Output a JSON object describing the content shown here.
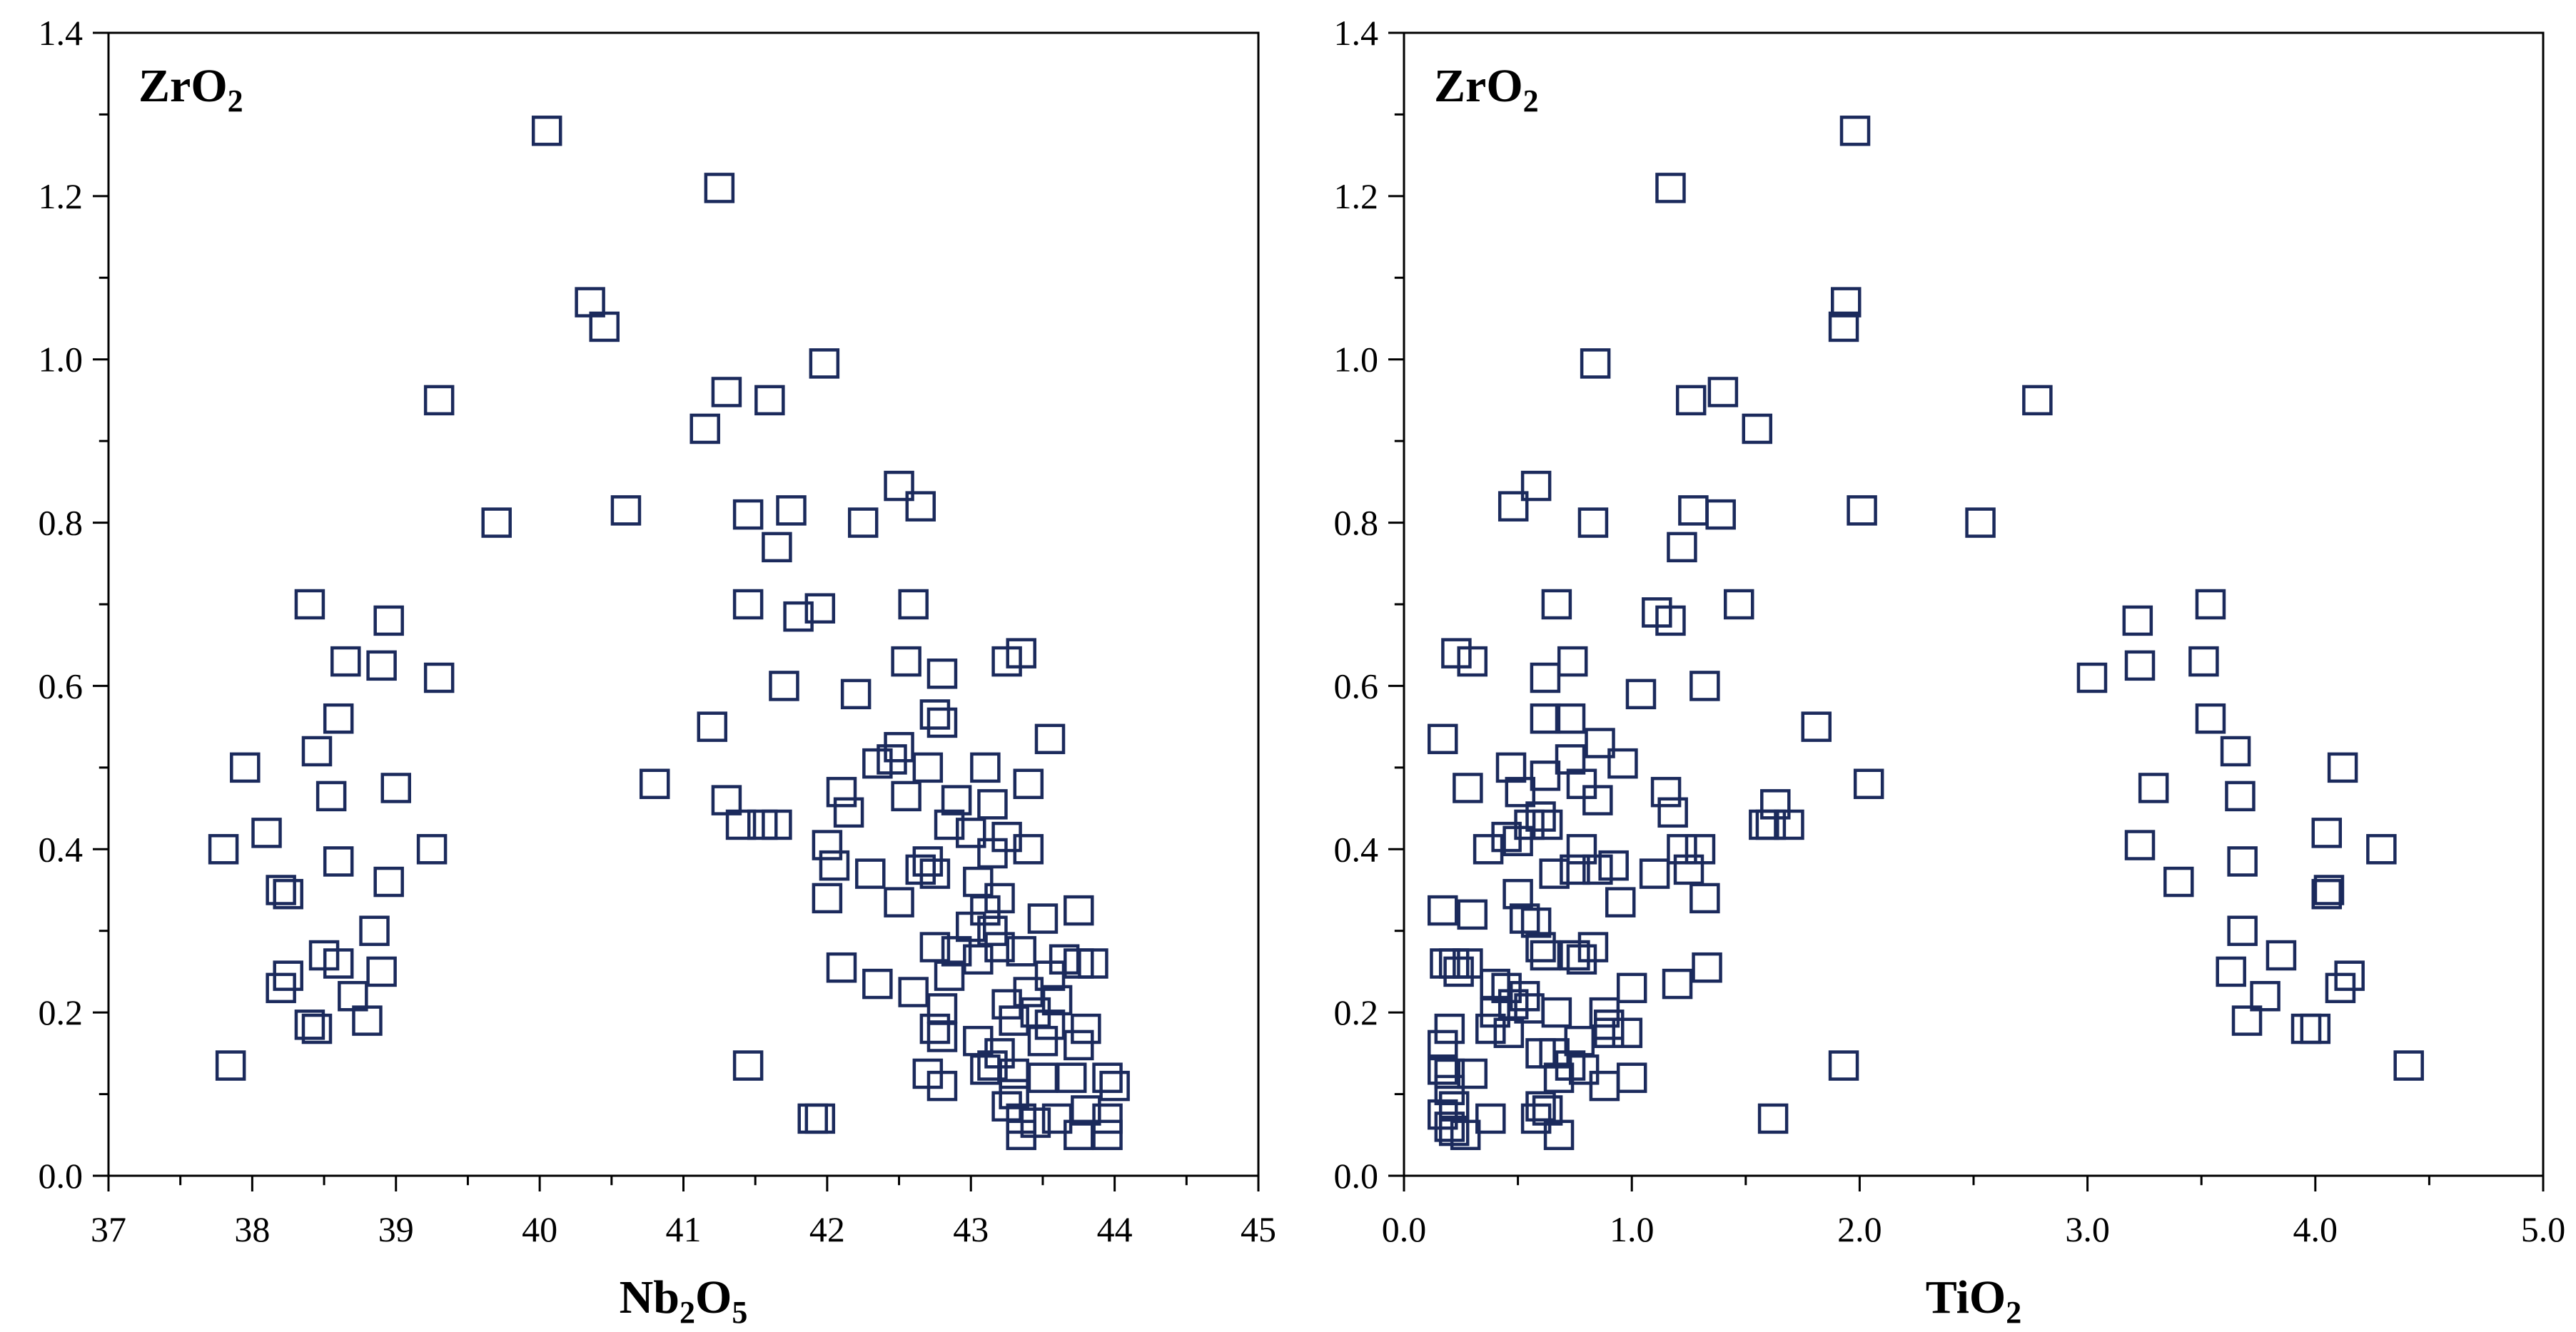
{
  "chart_data": [
    {
      "type": "scatter",
      "title": "",
      "corner_label": {
        "main": "ZrO",
        "sub": "2"
      },
      "xlabel": {
        "parts": [
          {
            "t": "Nb"
          },
          {
            "t": "2",
            "sub": true
          },
          {
            "t": "O"
          },
          {
            "t": "5",
            "sub": true
          }
        ]
      },
      "ylabel": "",
      "xlim": [
        37,
        45
      ],
      "ylim": [
        0,
        1.4
      ],
      "xticks": [
        37,
        38,
        39,
        40,
        41,
        42,
        43,
        44,
        45
      ],
      "xtick_labels": [
        "37",
        "38",
        "39",
        "40",
        "41",
        "42",
        "43",
        "44",
        "45"
      ],
      "yticks": [
        0,
        0.2,
        0.4,
        0.6,
        0.8,
        1.0,
        1.2,
        1.4
      ],
      "ytick_labels": [
        "0.0",
        "0.2",
        "0.4",
        "0.6",
        "0.8",
        "1.0",
        "1.2",
        "1.4"
      ],
      "marker": "open-square",
      "marker_color": "#1b2a5c",
      "grid": false,
      "points": [
        [
          40.05,
          1.28
        ],
        [
          41.25,
          1.21
        ],
        [
          40.35,
          1.07
        ],
        [
          40.45,
          1.04
        ],
        [
          41.98,
          0.995
        ],
        [
          39.3,
          0.95
        ],
        [
          41.3,
          0.96
        ],
        [
          41.6,
          0.95
        ],
        [
          41.15,
          0.915
        ],
        [
          42.5,
          0.845
        ],
        [
          42.65,
          0.82
        ],
        [
          40.6,
          0.815
        ],
        [
          41.45,
          0.81
        ],
        [
          41.75,
          0.815
        ],
        [
          39.7,
          0.8
        ],
        [
          42.25,
          0.8
        ],
        [
          41.65,
          0.77
        ],
        [
          38.4,
          0.7
        ],
        [
          41.45,
          0.7
        ],
        [
          41.95,
          0.695
        ],
        [
          42.6,
          0.7
        ],
        [
          41.8,
          0.685
        ],
        [
          38.95,
          0.68
        ],
        [
          38.65,
          0.63
        ],
        [
          38.9,
          0.625
        ],
        [
          42.55,
          0.63
        ],
        [
          43.35,
          0.64
        ],
        [
          43.25,
          0.63
        ],
        [
          39.3,
          0.61
        ],
        [
          42.8,
          0.615
        ],
        [
          41.7,
          0.6
        ],
        [
          42.2,
          0.59
        ],
        [
          38.6,
          0.56
        ],
        [
          41.2,
          0.55
        ],
        [
          42.75,
          0.565
        ],
        [
          42.8,
          0.555
        ],
        [
          43.55,
          0.535
        ],
        [
          42.5,
          0.525
        ],
        [
          42.45,
          0.51
        ],
        [
          38.45,
          0.52
        ],
        [
          42.35,
          0.505
        ],
        [
          42.7,
          0.5
        ],
        [
          43.1,
          0.5
        ],
        [
          37.95,
          0.5
        ],
        [
          40.8,
          0.48
        ],
        [
          43.4,
          0.48
        ],
        [
          38.55,
          0.465
        ],
        [
          39.0,
          0.475
        ],
        [
          42.1,
          0.47
        ],
        [
          42.55,
          0.465
        ],
        [
          42.9,
          0.46
        ],
        [
          43.15,
          0.455
        ],
        [
          41.3,
          0.46
        ],
        [
          42.15,
          0.445
        ],
        [
          41.4,
          0.43
        ],
        [
          41.55,
          0.43
        ],
        [
          41.65,
          0.43
        ],
        [
          42.85,
          0.43
        ],
        [
          43.0,
          0.42
        ],
        [
          38.1,
          0.42
        ],
        [
          43.25,
          0.415
        ],
        [
          37.8,
          0.4
        ],
        [
          39.25,
          0.4
        ],
        [
          42.0,
          0.405
        ],
        [
          43.4,
          0.4
        ],
        [
          43.15,
          0.395
        ],
        [
          42.05,
          0.38
        ],
        [
          42.7,
          0.385
        ],
        [
          42.75,
          0.37
        ],
        [
          38.6,
          0.385
        ],
        [
          38.2,
          0.35
        ],
        [
          38.25,
          0.345
        ],
        [
          38.95,
          0.36
        ],
        [
          42.3,
          0.37
        ],
        [
          42.65,
          0.375
        ],
        [
          43.05,
          0.36
        ],
        [
          43.2,
          0.34
        ],
        [
          42.0,
          0.34
        ],
        [
          42.5,
          0.335
        ],
        [
          43.1,
          0.325
        ],
        [
          43.75,
          0.325
        ],
        [
          43.5,
          0.315
        ],
        [
          43.0,
          0.305
        ],
        [
          43.15,
          0.3
        ],
        [
          38.85,
          0.3
        ],
        [
          42.75,
          0.28
        ],
        [
          42.9,
          0.275
        ],
        [
          43.2,
          0.28
        ],
        [
          43.35,
          0.275
        ],
        [
          38.5,
          0.27
        ],
        [
          43.05,
          0.265
        ],
        [
          43.65,
          0.265
        ],
        [
          43.75,
          0.26
        ],
        [
          43.85,
          0.26
        ],
        [
          38.6,
          0.26
        ],
        [
          42.1,
          0.255
        ],
        [
          38.25,
          0.245
        ],
        [
          38.9,
          0.25
        ],
        [
          42.85,
          0.245
        ],
        [
          43.55,
          0.245
        ],
        [
          38.2,
          0.23
        ],
        [
          42.35,
          0.235
        ],
        [
          42.6,
          0.225
        ],
        [
          43.4,
          0.225
        ],
        [
          38.7,
          0.22
        ],
        [
          43.6,
          0.215
        ],
        [
          42.8,
          0.205
        ],
        [
          43.25,
          0.21
        ],
        [
          43.45,
          0.2
        ],
        [
          38.8,
          0.19
        ],
        [
          43.3,
          0.19
        ],
        [
          43.55,
          0.185
        ],
        [
          38.4,
          0.185
        ],
        [
          38.45,
          0.18
        ],
        [
          42.75,
          0.18
        ],
        [
          43.8,
          0.18
        ],
        [
          42.8,
          0.17
        ],
        [
          43.05,
          0.165
        ],
        [
          43.5,
          0.165
        ],
        [
          43.75,
          0.16
        ],
        [
          43.2,
          0.15
        ],
        [
          37.85,
          0.135
        ],
        [
          41.45,
          0.135
        ],
        [
          43.15,
          0.135
        ],
        [
          43.1,
          0.13
        ],
        [
          42.7,
          0.125
        ],
        [
          43.3,
          0.125
        ],
        [
          43.5,
          0.12
        ],
        [
          43.7,
          0.12
        ],
        [
          43.95,
          0.12
        ],
        [
          42.8,
          0.11
        ],
        [
          44.0,
          0.11
        ],
        [
          43.3,
          0.1
        ],
        [
          43.25,
          0.085
        ],
        [
          43.8,
          0.08
        ],
        [
          41.9,
          0.07
        ],
        [
          41.95,
          0.07
        ],
        [
          43.35,
          0.07
        ],
        [
          43.45,
          0.065
        ],
        [
          43.6,
          0.07
        ],
        [
          43.95,
          0.07
        ],
        [
          43.35,
          0.05
        ],
        [
          43.75,
          0.05
        ],
        [
          43.95,
          0.05
        ]
      ]
    },
    {
      "type": "scatter",
      "title": "",
      "corner_label": {
        "main": "ZrO",
        "sub": "2"
      },
      "xlabel": {
        "parts": [
          {
            "t": "TiO"
          },
          {
            "t": "2",
            "sub": true
          }
        ]
      },
      "ylabel": "",
      "xlim": [
        0,
        5
      ],
      "ylim": [
        0,
        1.4
      ],
      "xticks": [
        0,
        1,
        2,
        3,
        4,
        5
      ],
      "xtick_labels": [
        "0.0",
        "1.0",
        "2.0",
        "3.0",
        "4.0",
        "5.0"
      ],
      "yticks": [
        0,
        0.2,
        0.4,
        0.6,
        0.8,
        1.0,
        1.2,
        1.4
      ],
      "ytick_labels": [
        "0.0",
        "0.2",
        "0.4",
        "0.6",
        "0.8",
        "1.0",
        "1.2",
        "1.4"
      ],
      "marker": "open-square",
      "marker_color": "#1b2a5c",
      "grid": false,
      "points": [
        [
          1.98,
          1.28
        ],
        [
          1.17,
          1.21
        ],
        [
          1.94,
          1.07
        ],
        [
          1.93,
          1.04
        ],
        [
          0.84,
          0.995
        ],
        [
          2.78,
          0.95
        ],
        [
          1.4,
          0.96
        ],
        [
          1.26,
          0.95
        ],
        [
          1.55,
          0.915
        ],
        [
          0.58,
          0.845
        ],
        [
          0.48,
          0.82
        ],
        [
          1.27,
          0.815
        ],
        [
          2.01,
          0.815
        ],
        [
          1.39,
          0.81
        ],
        [
          0.83,
          0.8
        ],
        [
          2.53,
          0.8
        ],
        [
          1.22,
          0.77
        ],
        [
          3.54,
          0.7
        ],
        [
          0.67,
          0.7
        ],
        [
          1.11,
          0.69
        ],
        [
          1.47,
          0.7
        ],
        [
          1.17,
          0.68
        ],
        [
          3.22,
          0.68
        ],
        [
          0.23,
          0.64
        ],
        [
          0.74,
          0.63
        ],
        [
          0.3,
          0.63
        ],
        [
          3.23,
          0.625
        ],
        [
          3.51,
          0.63
        ],
        [
          3.02,
          0.61
        ],
        [
          0.62,
          0.61
        ],
        [
          1.32,
          0.6
        ],
        [
          1.04,
          0.59
        ],
        [
          0.17,
          0.535
        ],
        [
          1.81,
          0.55
        ],
        [
          3.54,
          0.56
        ],
        [
          0.73,
          0.56
        ],
        [
          0.62,
          0.56
        ],
        [
          0.86,
          0.53
        ],
        [
          0.73,
          0.51
        ],
        [
          3.65,
          0.52
        ],
        [
          0.96,
          0.505
        ],
        [
          0.47,
          0.5
        ],
        [
          4.12,
          0.5
        ],
        [
          0.62,
          0.49
        ],
        [
          2.04,
          0.48
        ],
        [
          0.28,
          0.475
        ],
        [
          3.29,
          0.475
        ],
        [
          1.15,
          0.47
        ],
        [
          0.78,
          0.48
        ],
        [
          0.51,
          0.47
        ],
        [
          3.67,
          0.465
        ],
        [
          0.85,
          0.46
        ],
        [
          1.63,
          0.455
        ],
        [
          1.18,
          0.445
        ],
        [
          0.6,
          0.44
        ],
        [
          0.55,
          0.43
        ],
        [
          1.58,
          0.43
        ],
        [
          1.61,
          0.43
        ],
        [
          1.69,
          0.43
        ],
        [
          0.63,
          0.43
        ],
        [
          4.05,
          0.42
        ],
        [
          0.45,
          0.415
        ],
        [
          0.5,
          0.41
        ],
        [
          0.78,
          0.4
        ],
        [
          1.22,
          0.4
        ],
        [
          1.3,
          0.4
        ],
        [
          3.23,
          0.405
        ],
        [
          4.29,
          0.4
        ],
        [
          0.37,
          0.4
        ],
        [
          0.92,
          0.38
        ],
        [
          0.66,
          0.37
        ],
        [
          0.75,
          0.375
        ],
        [
          3.68,
          0.385
        ],
        [
          1.25,
          0.375
        ],
        [
          1.1,
          0.37
        ],
        [
          0.85,
          0.375
        ],
        [
          3.4,
          0.36
        ],
        [
          4.06,
          0.35
        ],
        [
          4.05,
          0.345
        ],
        [
          0.5,
          0.345
        ],
        [
          1.32,
          0.34
        ],
        [
          0.95,
          0.335
        ],
        [
          0.17,
          0.325
        ],
        [
          0.3,
          0.32
        ],
        [
          0.53,
          0.315
        ],
        [
          0.58,
          0.31
        ],
        [
          3.68,
          0.3
        ],
        [
          0.6,
          0.28
        ],
        [
          0.62,
          0.27
        ],
        [
          0.83,
          0.28
        ],
        [
          0.75,
          0.27
        ],
        [
          0.78,
          0.265
        ],
        [
          0.18,
          0.26
        ],
        [
          0.22,
          0.26
        ],
        [
          0.28,
          0.26
        ],
        [
          3.85,
          0.27
        ],
        [
          1.33,
          0.255
        ],
        [
          3.63,
          0.25
        ],
        [
          0.24,
          0.25
        ],
        [
          4.15,
          0.245
        ],
        [
          0.4,
          0.235
        ],
        [
          0.45,
          0.23
        ],
        [
          1.0,
          0.23
        ],
        [
          1.2,
          0.235
        ],
        [
          4.11,
          0.23
        ],
        [
          0.53,
          0.22
        ],
        [
          3.78,
          0.22
        ],
        [
          0.48,
          0.21
        ],
        [
          0.55,
          0.205
        ],
        [
          0.4,
          0.2
        ],
        [
          0.67,
          0.2
        ],
        [
          0.88,
          0.2
        ],
        [
          0.9,
          0.185
        ],
        [
          3.7,
          0.19
        ],
        [
          0.2,
          0.18
        ],
        [
          0.38,
          0.18
        ],
        [
          0.46,
          0.175
        ],
        [
          0.9,
          0.175
        ],
        [
          0.98,
          0.175
        ],
        [
          3.96,
          0.18
        ],
        [
          4.0,
          0.18
        ],
        [
          0.17,
          0.16
        ],
        [
          0.77,
          0.165
        ],
        [
          0.6,
          0.15
        ],
        [
          0.66,
          0.15
        ],
        [
          0.17,
          0.13
        ],
        [
          0.73,
          0.135
        ],
        [
          0.79,
          0.13
        ],
        [
          1.93,
          0.135
        ],
        [
          4.41,
          0.135
        ],
        [
          0.2,
          0.125
        ],
        [
          0.3,
          0.125
        ],
        [
          0.68,
          0.12
        ],
        [
          1.0,
          0.12
        ],
        [
          0.2,
          0.105
        ],
        [
          0.88,
          0.11
        ],
        [
          0.22,
          0.085
        ],
        [
          0.6,
          0.085
        ],
        [
          0.63,
          0.08
        ],
        [
          0.17,
          0.075
        ],
        [
          0.38,
          0.07
        ],
        [
          0.58,
          0.07
        ],
        [
          1.62,
          0.07
        ],
        [
          0.2,
          0.06
        ],
        [
          0.22,
          0.055
        ],
        [
          0.27,
          0.05
        ],
        [
          0.68,
          0.05
        ]
      ]
    }
  ]
}
